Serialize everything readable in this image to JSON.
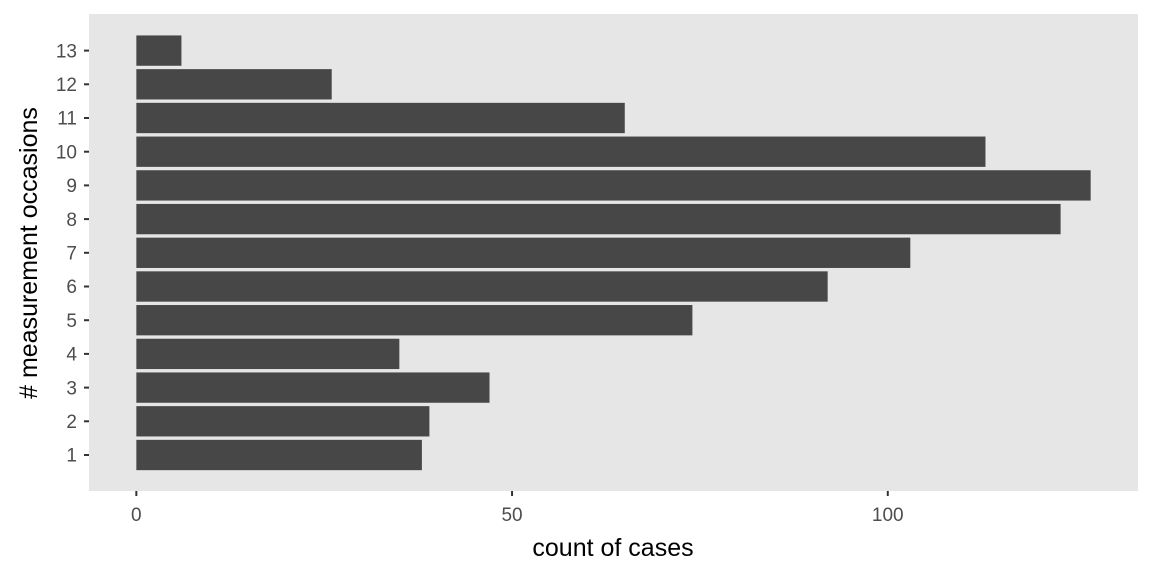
{
  "chart_data": {
    "type": "bar",
    "orientation": "horizontal",
    "categories": [
      "1",
      "2",
      "3",
      "4",
      "5",
      "6",
      "7",
      "8",
      "9",
      "10",
      "11",
      "12",
      "13"
    ],
    "values": [
      38,
      39,
      47,
      35,
      74,
      92,
      103,
      123,
      127,
      113,
      65,
      26,
      6
    ],
    "xlabel": "count of cases",
    "ylabel": "# measurement occasions",
    "x_ticks": [
      0,
      50,
      100
    ],
    "x_tick_labels": [
      "0",
      "50",
      "100"
    ],
    "xlim": [
      -6.3,
      133.3
    ],
    "grid": false,
    "legend": "none",
    "colors": {
      "bar": "#474747",
      "panel_background": "#e6e6e6",
      "tick_text": "#4d4d4d",
      "tick_mark": "#333333",
      "axis_title": "#000000"
    }
  }
}
